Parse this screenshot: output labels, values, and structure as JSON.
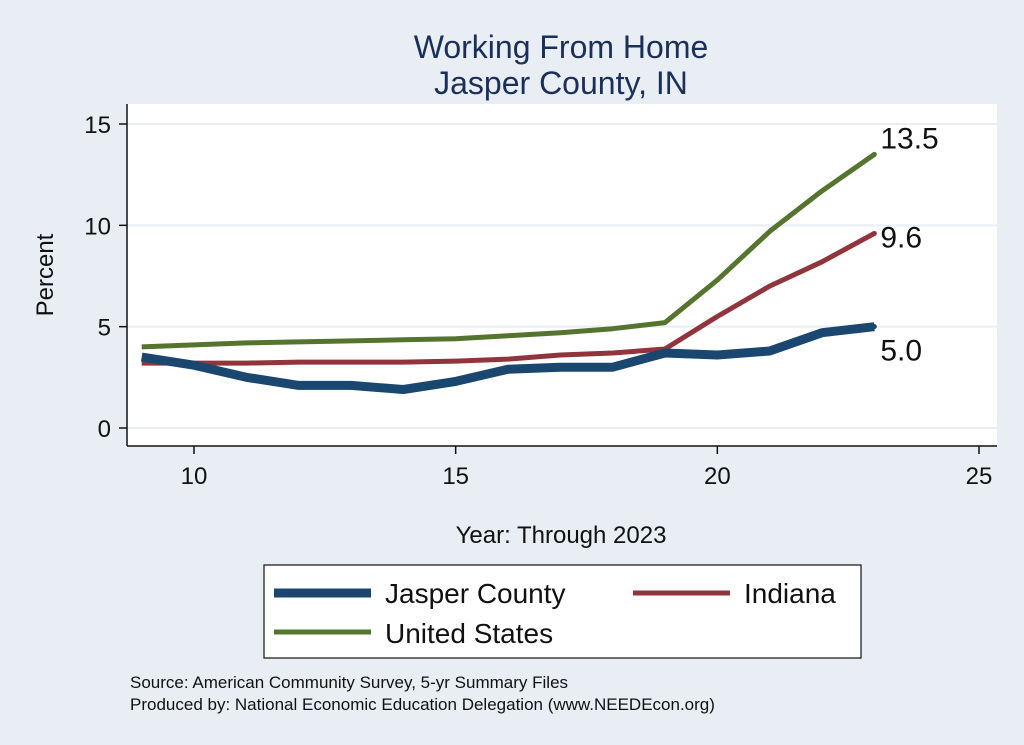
{
  "chart_data": {
    "type": "line",
    "title": [
      "Working From Home",
      "Jasper County, IN"
    ],
    "xlabel": "Year: Through 2023",
    "ylabel": "Percent",
    "xlim": [
      9,
      25
    ],
    "ylim": [
      0,
      15
    ],
    "x_ticks": [
      10,
      15,
      20,
      25
    ],
    "y_ticks": [
      0,
      5,
      10,
      15
    ],
    "grid": true,
    "x": [
      9,
      10,
      11,
      12,
      13,
      14,
      15,
      16,
      17,
      18,
      19,
      20,
      21,
      22,
      23
    ],
    "series": [
      {
        "name": "Jasper County",
        "color": "#1a476f",
        "values": [
          3.5,
          3.1,
          2.5,
          2.1,
          2.1,
          1.9,
          2.3,
          2.9,
          3.0,
          3.0,
          3.7,
          3.6,
          3.8,
          4.7,
          5.0
        ],
        "end_label": "5.0"
      },
      {
        "name": "Indiana",
        "color": "#90353b",
        "values": [
          3.2,
          3.2,
          3.2,
          3.25,
          3.25,
          3.25,
          3.3,
          3.4,
          3.6,
          3.7,
          3.9,
          5.5,
          7.0,
          8.2,
          9.6
        ],
        "end_label": "9.6"
      },
      {
        "name": "United States",
        "color": "#55752f",
        "values": [
          4.0,
          4.1,
          4.2,
          4.25,
          4.3,
          4.35,
          4.4,
          4.55,
          4.7,
          4.9,
          5.2,
          7.3,
          9.7,
          11.7,
          13.5
        ],
        "end_label": "13.5"
      }
    ],
    "legend": {
      "placement": "bottom",
      "items": [
        "Jasper County",
        "Indiana",
        "United States"
      ]
    },
    "notes": [
      "Source: American Community Survey, 5-yr Summary Files",
      "Produced by: National Economic Education Delegation (www.NEEDEcon.org)"
    ]
  }
}
